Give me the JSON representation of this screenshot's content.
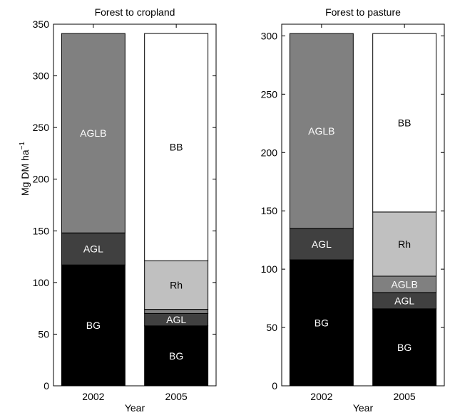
{
  "y_axis_label": "Mg DM ha",
  "y_axis_label_superscript": "−1",
  "chart_data": [
    {
      "type": "bar",
      "stacked": true,
      "title": "Forest to cropland",
      "xlabel": "Year",
      "categories": [
        "2002",
        "2005"
      ],
      "ylim": [
        0,
        350
      ],
      "yticks": [
        0,
        50,
        100,
        150,
        200,
        250,
        300,
        350
      ],
      "grid": false,
      "series": [
        {
          "name": "BG",
          "values": [
            117,
            58
          ],
          "color": "#000000",
          "label_color": "#ffffff"
        },
        {
          "name": "AGL",
          "values": [
            31,
            12
          ],
          "color": "#404040",
          "label_color": "#ffffff"
        },
        {
          "name": "AGLB",
          "values": [
            193,
            4
          ],
          "color": "#808080",
          "label_color": "#ffffff"
        },
        {
          "name": "Rh",
          "values": [
            0,
            47
          ],
          "color": "#c0c0c0",
          "label_color": "#000000"
        },
        {
          "name": "BB",
          "values": [
            0,
            220
          ],
          "color": "#ffffff",
          "label_color": "#000000"
        }
      ]
    },
    {
      "type": "bar",
      "stacked": true,
      "title": "Forest to pasture",
      "xlabel": "Year",
      "categories": [
        "2002",
        "2005"
      ],
      "ylim": [
        0,
        310
      ],
      "yticks": [
        0,
        50,
        100,
        150,
        200,
        250,
        300
      ],
      "grid": false,
      "series": [
        {
          "name": "BG",
          "values": [
            108,
            66
          ],
          "color": "#000000",
          "label_color": "#ffffff"
        },
        {
          "name": "AGL",
          "values": [
            27,
            14
          ],
          "color": "#404040",
          "label_color": "#ffffff"
        },
        {
          "name": "AGLB",
          "values": [
            167,
            14
          ],
          "color": "#808080",
          "label_color": "#ffffff"
        },
        {
          "name": "Rh",
          "values": [
            0,
            55
          ],
          "color": "#c0c0c0",
          "label_color": "#000000"
        },
        {
          "name": "BB",
          "values": [
            0,
            153
          ],
          "color": "#ffffff",
          "label_color": "#000000"
        }
      ]
    }
  ]
}
